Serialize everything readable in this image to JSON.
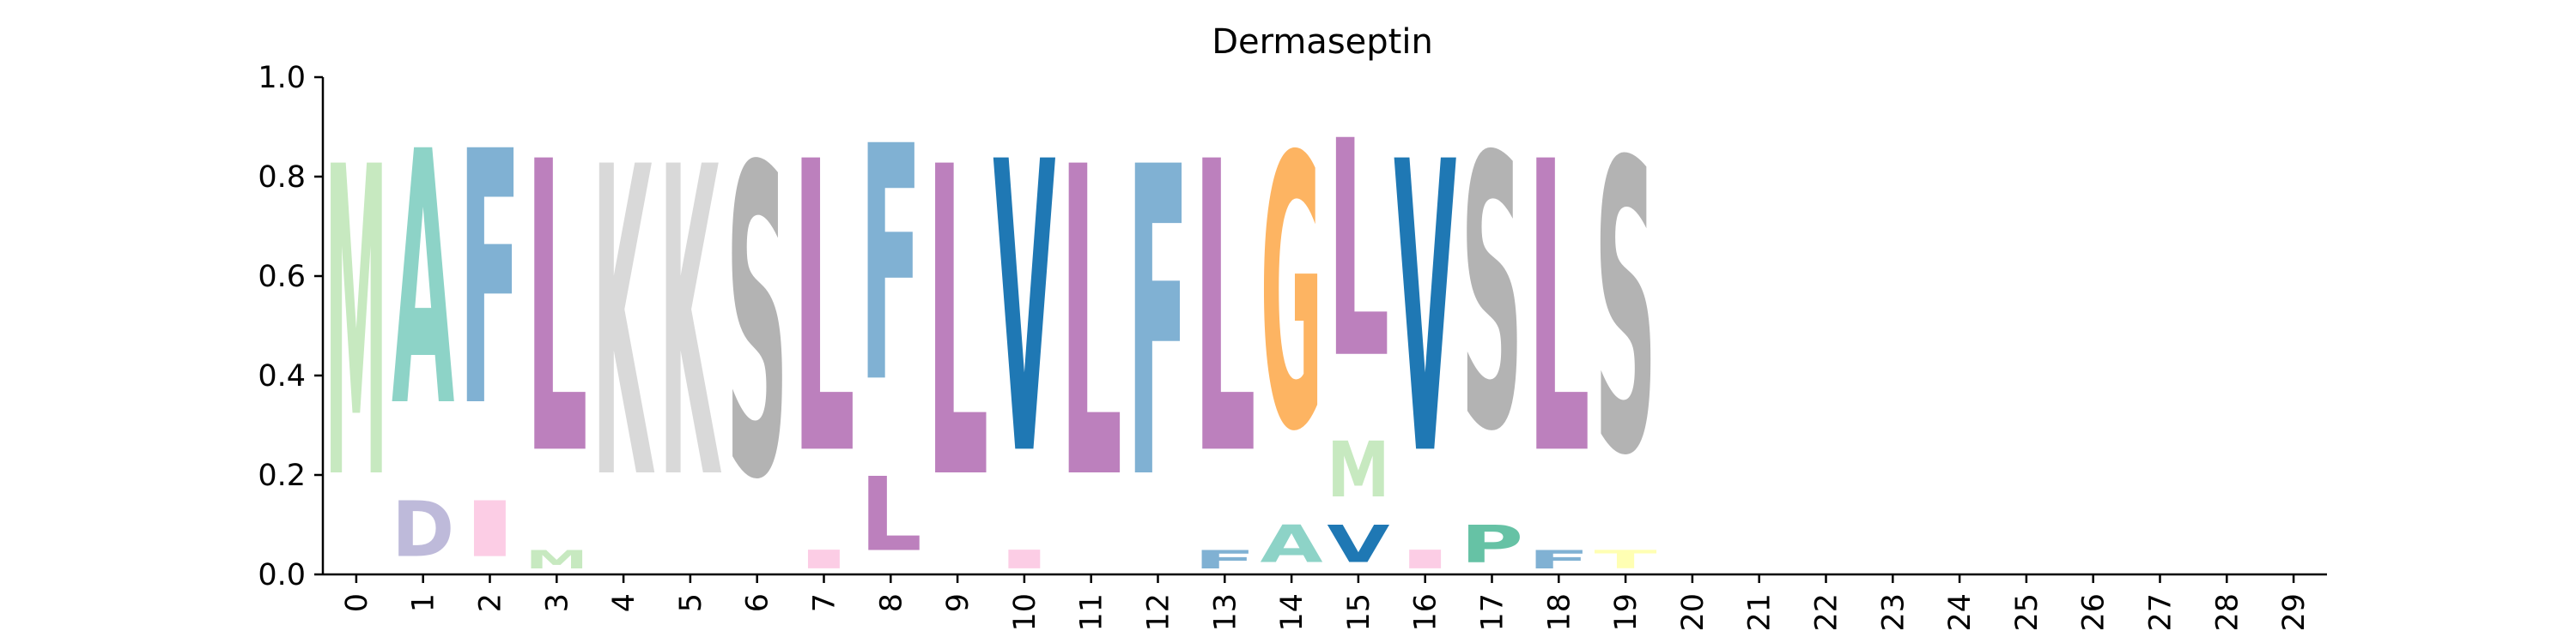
{
  "chart_data": {
    "type": "sequence-logo",
    "title": "Dermaseptin",
    "xlabel": "",
    "ylabel": "",
    "ylim": [
      0,
      1.0
    ],
    "yticks": [
      "0.0",
      "0.2",
      "0.4",
      "0.6",
      "0.8",
      "1.0"
    ],
    "xlim": [
      -0.5,
      29.5
    ],
    "xticks": [
      "0",
      "1",
      "2",
      "3",
      "4",
      "5",
      "6",
      "7",
      "8",
      "9",
      "10",
      "11",
      "12",
      "13",
      "14",
      "15",
      "16",
      "17",
      "18",
      "19",
      "20",
      "21",
      "22",
      "23",
      "24",
      "25",
      "26",
      "27",
      "28",
      "29"
    ],
    "colors": {
      "M": "#c7e9c0",
      "A": "#8dd3c7",
      "F": "#80b1d3",
      "L": "#bc80bd",
      "K": "#d9d9d9",
      "S": "#b3b3b3",
      "V": "#1f78b4",
      "G": "#fdb462",
      "D": "#bebada",
      "I": "#fccde5",
      "P": "#66c2a5",
      "T": "#ffffb3",
      "E": "#b3cde3"
    },
    "columns": [
      {
        "pos": 0,
        "letters": [
          {
            "aa": "M",
            "p": 1.0
          }
        ]
      },
      {
        "pos": 1,
        "letters": [
          {
            "aa": "D",
            "p": 0.18
          },
          {
            "aa": "A",
            "p": 0.82
          }
        ]
      },
      {
        "pos": 2,
        "letters": [
          {
            "aa": "I",
            "p": 0.18
          },
          {
            "aa": "F",
            "p": 0.82
          }
        ]
      },
      {
        "pos": 3,
        "letters": [
          {
            "aa": "M",
            "p": 0.06
          },
          {
            "aa": "L",
            "p": 0.94
          }
        ]
      },
      {
        "pos": 4,
        "letters": [
          {
            "aa": "K",
            "p": 1.0
          }
        ]
      },
      {
        "pos": 5,
        "letters": [
          {
            "aa": "K",
            "p": 1.0
          }
        ]
      },
      {
        "pos": 6,
        "letters": [
          {
            "aa": "S",
            "p": 1.0
          }
        ]
      },
      {
        "pos": 7,
        "letters": [
          {
            "aa": "I",
            "p": 0.06
          },
          {
            "aa": "L",
            "p": 0.94
          }
        ]
      },
      {
        "pos": 8,
        "letters": [
          {
            "aa": "L",
            "p": 0.24
          },
          {
            "aa": "F",
            "p": 0.76
          }
        ]
      },
      {
        "pos": 9,
        "letters": [
          {
            "aa": "L",
            "p": 1.0
          }
        ]
      },
      {
        "pos": 10,
        "letters": [
          {
            "aa": "I",
            "p": 0.06
          },
          {
            "aa": "V",
            "p": 0.94
          }
        ]
      },
      {
        "pos": 11,
        "letters": [
          {
            "aa": "L",
            "p": 1.0
          }
        ]
      },
      {
        "pos": 12,
        "letters": [
          {
            "aa": "F",
            "p": 1.0
          }
        ]
      },
      {
        "pos": 13,
        "letters": [
          {
            "aa": "F",
            "p": 0.06
          },
          {
            "aa": "L",
            "p": 0.94
          }
        ]
      },
      {
        "pos": 14,
        "letters": [
          {
            "aa": "A",
            "p": 0.12
          },
          {
            "aa": "G",
            "p": 0.88
          }
        ]
      },
      {
        "pos": 15,
        "letters": [
          {
            "aa": "V",
            "p": 0.12
          },
          {
            "aa": "M",
            "p": 0.18
          },
          {
            "aa": "L",
            "p": 0.7
          }
        ]
      },
      {
        "pos": 16,
        "letters": [
          {
            "aa": "I",
            "p": 0.06
          },
          {
            "aa": "V",
            "p": 0.94
          }
        ]
      },
      {
        "pos": 17,
        "letters": [
          {
            "aa": "P",
            "p": 0.12
          },
          {
            "aa": "S",
            "p": 0.88
          }
        ]
      },
      {
        "pos": 18,
        "letters": [
          {
            "aa": "F",
            "p": 0.06
          },
          {
            "aa": "L",
            "p": 0.94
          }
        ]
      },
      {
        "pos": 19,
        "letters": [
          {
            "aa": "T",
            "p": 0.06
          },
          {
            "aa": "S",
            "p": 0.94
          }
        ]
      }
    ]
  }
}
